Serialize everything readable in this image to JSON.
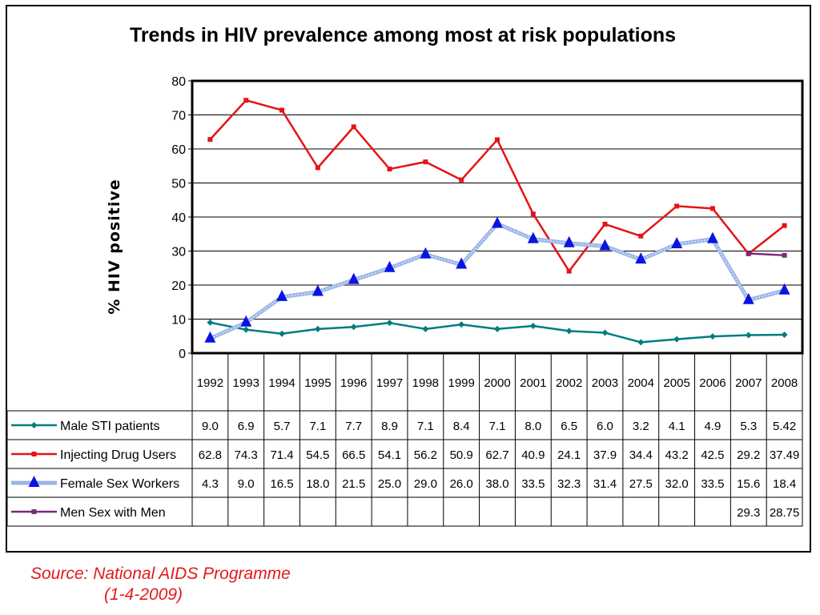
{
  "source": {
    "line1": "Source: National AIDS Programme",
    "line2": "(1-4-2009)"
  },
  "chart_data": {
    "type": "line",
    "title": "Trends in HIV prevalence among most at risk populations",
    "xlabel": "",
    "ylabel": "% HIV positive",
    "ylim": [
      0,
      80
    ],
    "yticks": [
      0,
      10,
      20,
      30,
      40,
      50,
      60,
      70,
      80
    ],
    "grid": true,
    "legend": "data-table",
    "categories": [
      "1992",
      "1993",
      "1994",
      "1995",
      "1996",
      "1997",
      "1998",
      "1999",
      "2000",
      "2001",
      "2002",
      "2003",
      "2004",
      "2005",
      "2006",
      "2007",
      "2008"
    ],
    "series": [
      {
        "name": "Male STI patients",
        "color": "#007d80",
        "marker": "diamond",
        "values": [
          9.0,
          6.9,
          5.7,
          7.1,
          7.7,
          8.9,
          7.1,
          8.4,
          7.1,
          8.0,
          6.5,
          6.0,
          3.2,
          4.1,
          4.9,
          5.3,
          5.42
        ],
        "labels": [
          "9.0",
          "6.9",
          "5.7",
          "7.1",
          "7.7",
          "8.9",
          "7.1",
          "8.4",
          "7.1",
          "8.0",
          "6.5",
          "6.0",
          "3.2",
          "4.1",
          "4.9",
          "5.3",
          "5.42"
        ]
      },
      {
        "name": "Injecting Drug Users",
        "color": "#e41414",
        "marker": "square",
        "values": [
          62.8,
          74.3,
          71.4,
          54.5,
          66.5,
          54.1,
          56.2,
          50.9,
          62.7,
          40.9,
          24.1,
          37.9,
          34.4,
          43.2,
          42.5,
          29.2,
          37.49
        ],
        "labels": [
          "62.8",
          "74.3",
          "71.4",
          "54.5",
          "66.5",
          "54.1",
          "56.2",
          "50.9",
          "62.7",
          "40.9",
          "24.1",
          "37.9",
          "34.4",
          "43.2",
          "42.5",
          "29.2",
          "37.49"
        ]
      },
      {
        "name": "Female Sex Workers",
        "color": "#9ab4e8",
        "marker": "triangle",
        "markerColor": "#0a14e0",
        "values": [
          4.3,
          9.0,
          16.5,
          18.0,
          21.5,
          25.0,
          29.0,
          26.0,
          38.0,
          33.5,
          32.3,
          31.4,
          27.5,
          32.0,
          33.5,
          15.6,
          18.4
        ],
        "labels": [
          "4.3",
          "9.0",
          "16.5",
          "18.0",
          "21.5",
          "25.0",
          "29.0",
          "26.0",
          "38.0",
          "33.5",
          "32.3",
          "31.4",
          "27.5",
          "32.0",
          "33.5",
          "15.6",
          "18.4"
        ]
      },
      {
        "name": "Men Sex with Men",
        "color": "#7a2a7e",
        "marker": "square",
        "values": [
          null,
          null,
          null,
          null,
          null,
          null,
          null,
          null,
          null,
          null,
          null,
          null,
          null,
          null,
          null,
          29.3,
          28.75
        ],
        "labels": [
          "",
          "",
          "",
          "",
          "",
          "",
          "",
          "",
          "",
          "",
          "",
          "",
          "",
          "",
          "",
          "29.3",
          "28.75"
        ]
      }
    ]
  }
}
